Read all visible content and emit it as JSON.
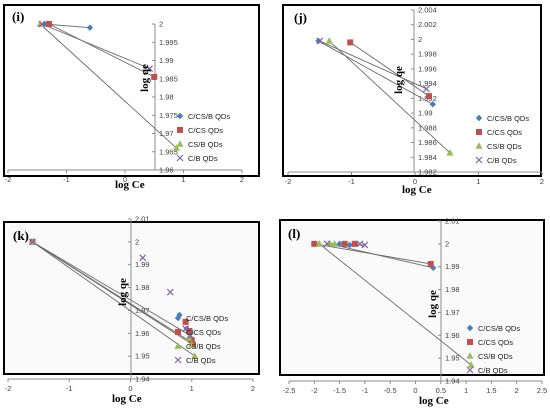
{
  "legend": {
    "entries": [
      "C/CS/B QDs",
      "C/CS QDs",
      "CS/B QDs",
      "C/B QDs"
    ],
    "colors": [
      "#4a7ebb",
      "#c0504d",
      "#9bbb59",
      "#8064a2"
    ],
    "markers": [
      "diamond",
      "square",
      "triangle",
      "x"
    ]
  },
  "chart_data": [
    {
      "panel_label": "(i)",
      "type": "scatter",
      "xlabel": "log Ce",
      "ylabel": "log qe",
      "xlim": [
        -2,
        2
      ],
      "ylim": [
        1.96,
        2
      ],
      "xticks": [
        -2,
        -1,
        0,
        1,
        2
      ],
      "yticks": [
        1.96,
        1.965,
        1.97,
        1.975,
        1.98,
        1.985,
        1.99,
        1.995,
        2
      ],
      "xtick_labels": [
        "-2",
        "-1",
        "0",
        "1",
        "2"
      ],
      "ytick_labels": [
        "1.96",
        "1.965",
        "1.97",
        "1.975",
        "1.98",
        "1.985",
        "1.99",
        "1.995",
        "2"
      ],
      "series": [
        {
          "name": "C/CS/B QDs",
          "x": [
            -1.38,
            -0.6
          ],
          "y": [
            2.0,
            1.999
          ]
        },
        {
          "name": "C/CS QDs",
          "x": [
            -1.3,
            0.5
          ],
          "y": [
            2.0,
            1.9855
          ]
        },
        {
          "name": "CS/B QDs",
          "x": [
            -1.45,
            0.88
          ],
          "y": [
            2.0,
            1.966
          ]
        },
        {
          "name": "C/B QDs",
          "x": [
            -1.42,
            0.42
          ],
          "y": [
            2.0,
            1.9878
          ]
        }
      ]
    },
    {
      "panel_label": "(j)",
      "type": "scatter",
      "xlabel": "log Ce",
      "ylabel": "log qe",
      "xlim": [
        -2,
        2
      ],
      "ylim": [
        1.982,
        2.004
      ],
      "xticks": [
        -2,
        -1,
        0,
        1,
        2
      ],
      "yticks": [
        1.982,
        1.984,
        1.986,
        1.988,
        1.99,
        1.992,
        1.994,
        1.996,
        1.998,
        2,
        2.002,
        2.004
      ],
      "xtick_labels": [
        "-2",
        "-1",
        "0",
        "1",
        "2"
      ],
      "ytick_labels": [
        "1.982",
        "1.984",
        "1.986",
        "1.988",
        "1.99",
        "1.992",
        "1.994",
        "1.996",
        "1.998",
        "2",
        "2.002",
        "2.004"
      ],
      "series": [
        {
          "name": "C/CS/B QDs",
          "x": [
            -1.52,
            0.28
          ],
          "y": [
            1.9998,
            1.9912
          ]
        },
        {
          "name": "C/CS QDs",
          "x": [
            -1.02,
            0.22
          ],
          "y": [
            1.9996,
            1.9923
          ]
        },
        {
          "name": "CS/B QDs",
          "x": [
            -1.35,
            0.55
          ],
          "y": [
            1.9998,
            1.9846
          ]
        },
        {
          "name": "C/B QDs",
          "x": [
            -1.5,
            0.18
          ],
          "y": [
            1.9998,
            1.9933
          ]
        }
      ]
    },
    {
      "panel_label": "(k)",
      "type": "scatter",
      "xlabel": "log Ce",
      "ylabel": "log qe",
      "xlim": [
        -2,
        2
      ],
      "ylim": [
        1.94,
        2.01
      ],
      "xticks": [
        -2,
        -1,
        0,
        1,
        2
      ],
      "yticks": [
        1.94,
        1.95,
        1.96,
        1.97,
        1.98,
        1.99,
        2,
        2.01
      ],
      "xtick_labels": [
        "-2",
        "-1",
        "0",
        "1",
        "2"
      ],
      "ytick_labels": [
        "1.94",
        "1.95",
        "1.96",
        "1.97",
        "1.98",
        "1.99",
        "2",
        "2.01"
      ],
      "series": [
        {
          "name": "C/CS/B QDs",
          "x": [
            -1.6,
            0.8,
            0.92,
            0.98,
            1.0
          ],
          "y": [
            2.0,
            1.968,
            1.962,
            1.958,
            1.956
          ]
        },
        {
          "name": "C/CS QDs",
          "x": [
            -1.6,
            0.9,
            0.96,
            1.0,
            1.02
          ],
          "y": [
            2.0,
            1.965,
            1.961,
            1.957,
            1.955
          ]
        },
        {
          "name": "CS/B QDs",
          "x": [
            -1.6,
            0.95,
            1.0,
            1.05
          ],
          "y": [
            2.0,
            1.958,
            1.955,
            1.95
          ]
        },
        {
          "name": "C/B QDs",
          "x": [
            -1.6,
            0.2,
            0.65,
            0.9,
            0.98
          ],
          "y": [
            2.0,
            1.993,
            1.978,
            1.962,
            1.959
          ]
        }
      ]
    },
    {
      "panel_label": "(l)",
      "type": "scatter",
      "xlabel": "log Ce",
      "ylabel": "log qe",
      "xlim": [
        -2.5,
        2.5
      ],
      "ylim": [
        1.94,
        2.01
      ],
      "xticks": [
        -2.5,
        -2,
        -1.5,
        -1,
        -0.5,
        0,
        0.5,
        1,
        1.5,
        2,
        2.5
      ],
      "yticks": [
        1.94,
        1.95,
        1.96,
        1.97,
        1.98,
        1.99,
        2,
        2.01
      ],
      "xtick_labels": [
        "-2.5",
        "-2",
        "-1.5",
        "-1",
        "-0.5",
        "0",
        "0.5",
        "1",
        "1.5",
        "2",
        "2.5"
      ],
      "ytick_labels": [
        "1.94",
        "1.95",
        "1.96",
        "1.97",
        "1.98",
        "1.99",
        "2",
        "2.01"
      ],
      "series": [
        {
          "name": "C/CS/B QDs",
          "x": [
            -1.7,
            -1.5,
            -1.3,
            0.35
          ],
          "y": [
            2.0,
            2.0,
            1.9995,
            1.9895
          ]
        },
        {
          "name": "C/CS QDs",
          "x": [
            -2.0,
            -1.4,
            -1.2,
            0.3
          ],
          "y": [
            2.0,
            2.0,
            2.0,
            1.9912
          ]
        },
        {
          "name": "CS/B QDs",
          "x": [
            -1.9,
            -1.7,
            -1.6,
            1.1
          ],
          "y": [
            2.0,
            2.0,
            2.0,
            1.947
          ]
        },
        {
          "name": "C/B QDs",
          "x": [
            -1.75,
            -1.1,
            -1.0
          ],
          "y": [
            2.0,
            2.0,
            1.9995
          ]
        }
      ]
    }
  ]
}
